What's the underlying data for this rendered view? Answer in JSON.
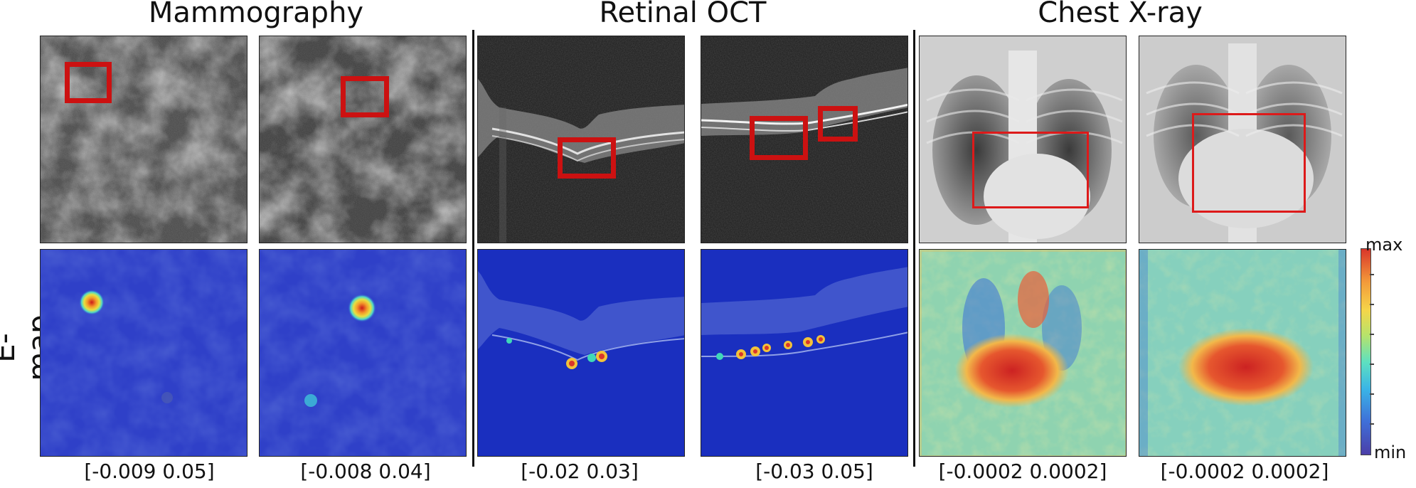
{
  "columns": [
    {
      "title": "Mammography",
      "ranges": [
        "[-0.009 0.05]",
        "[-0.008 0.04]"
      ]
    },
    {
      "title": "Retinal OCT",
      "ranges": [
        "[-0.02 0.03]",
        "[-0.03 0.05]"
      ]
    },
    {
      "title": "Chest X-ray",
      "ranges": [
        "[-0.0002 0.0002]",
        "[-0.0002 0.0002]"
      ]
    }
  ],
  "row_label": "E-map",
  "colorbar": {
    "max_label": "max",
    "min_label": "min"
  },
  "colors": {
    "box_red": "#cc1111",
    "map_low": "#2b3fcf",
    "map_high": "#d9362a"
  }
}
